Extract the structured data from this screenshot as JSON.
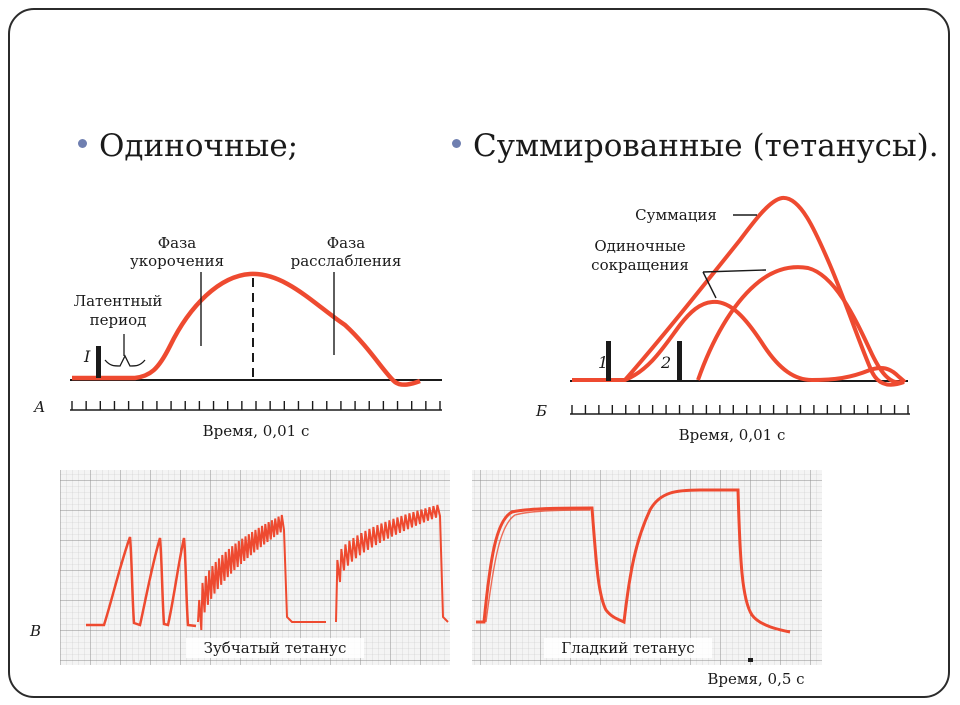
{
  "bullets": [
    {
      "text": "Одиночные;"
    },
    {
      "text": "Суммированные (тетанусы)."
    }
  ],
  "panel_a": {
    "letter": "А",
    "phase_short_1": "Фаза",
    "phase_short_2": "укорочения",
    "phase_relax_1": "Фаза",
    "phase_relax_2": "расслабления",
    "latent_1": "Латентный",
    "latent_2": "период",
    "stim": "I",
    "time": "Время, 0,01 с"
  },
  "panel_b": {
    "letter": "Б",
    "summation": "Суммация",
    "single_1": "Одиночные",
    "single_2": "сокращения",
    "stim1": "1",
    "stim2": "2",
    "time": "Время, 0,01 с"
  },
  "panel_v": {
    "letter": "В",
    "serrated": "Зубчатый тетанус",
    "smooth": "Гладкий тетанус",
    "time": "Время, 0,5 с"
  },
  "colors": {
    "curve": "#ee4a30",
    "ink": "#1a1a1a",
    "grid_bg": "#f4f4f4",
    "grid_line": "#b9b9b9",
    "bullet_dot": "#6f7fb0"
  }
}
